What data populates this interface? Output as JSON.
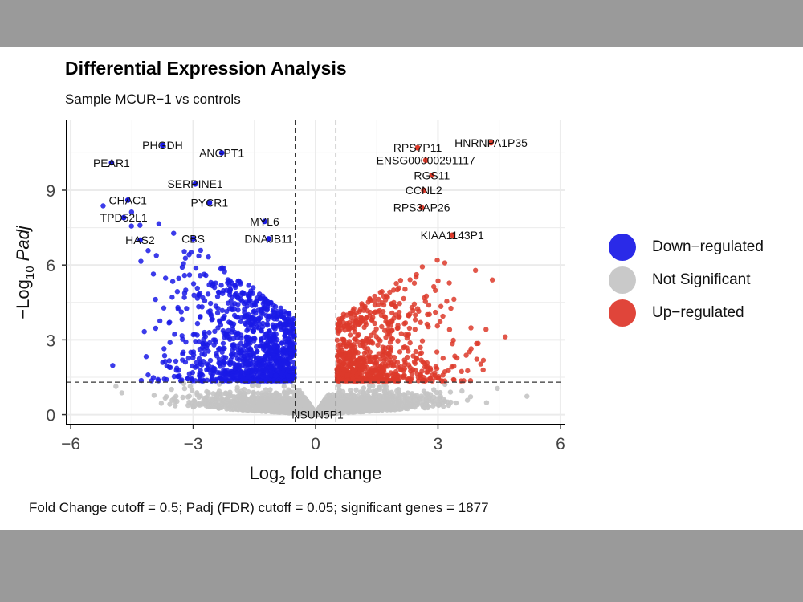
{
  "title": "Differential Expression Analysis",
  "subtitle": "Sample MCUR−1 vs controls",
  "caption": "Fold Change cutoff = 0.5; Padj (FDR) cutoff = 0.05; significant genes = 1877",
  "colors": {
    "down": "#1a1ae6",
    "ns": "#c4c4c4",
    "up": "#dd3a2a",
    "background": "#9a9a9a"
  },
  "legend": [
    {
      "label": "Down−regulated",
      "color": "#2a2ae8"
    },
    {
      "label": "Not Significant",
      "color": "#c9c9c9"
    },
    {
      "label": "Up−regulated",
      "color": "#e0453a"
    }
  ],
  "chart_data": {
    "type": "scatter",
    "title": "Differential Expression Analysis",
    "subtitle": "Sample MCUR−1 vs controls",
    "xlabel_main": "Log",
    "xlabel_sub": "2",
    "xlabel_rest": " fold change",
    "ylabel_prefix": "−Log",
    "ylabel_sub": "10",
    "ylabel_italic": " Padj",
    "xlim": [
      -6.1,
      6.1
    ],
    "ylim": [
      -0.4,
      11.8
    ],
    "xticks": [
      -6,
      -3,
      0,
      3,
      6
    ],
    "xtick_labels": [
      "−6",
      "−3",
      "0",
      "3",
      "6"
    ],
    "yticks": [
      0,
      3,
      6,
      9
    ],
    "ytick_labels": [
      "0",
      "3",
      "6",
      "9"
    ],
    "thresholds": {
      "log2fc": 0.5,
      "neglog10_padj": 1.301
    },
    "grid": true,
    "legend_position": "right",
    "labeled_genes": [
      {
        "gene": "PHGDH",
        "x": -3.75,
        "y": 10.8,
        "group": "down"
      },
      {
        "gene": "ANGPT1",
        "x": -2.3,
        "y": 10.5,
        "group": "down"
      },
      {
        "gene": "PEAR1",
        "x": -5.0,
        "y": 10.1,
        "group": "down"
      },
      {
        "gene": "SERPINE1",
        "x": -2.95,
        "y": 9.25,
        "group": "down"
      },
      {
        "gene": "CHAC1",
        "x": -4.6,
        "y": 8.6,
        "group": "down"
      },
      {
        "gene": "PYCR1",
        "x": -2.6,
        "y": 8.5,
        "group": "down"
      },
      {
        "gene": "TPD52L1",
        "x": -4.7,
        "y": 7.9,
        "group": "down"
      },
      {
        "gene": "MYL6",
        "x": -1.25,
        "y": 7.75,
        "group": "down"
      },
      {
        "gene": "HAS2",
        "x": -4.3,
        "y": 7.0,
        "group": "down"
      },
      {
        "gene": "CBS",
        "x": -3.0,
        "y": 7.05,
        "group": "down"
      },
      {
        "gene": "DNAJB11",
        "x": -1.15,
        "y": 7.05,
        "group": "down"
      },
      {
        "gene": "HNRNPA1P35",
        "x": 4.3,
        "y": 10.9,
        "group": "up"
      },
      {
        "gene": "RPS7P11",
        "x": 2.5,
        "y": 10.7,
        "group": "up"
      },
      {
        "gene": "ENSG00000291117",
        "x": 2.7,
        "y": 10.2,
        "group": "up"
      },
      {
        "gene": "RGS11",
        "x": 2.85,
        "y": 9.6,
        "group": "up"
      },
      {
        "gene": "CCNL2",
        "x": 2.65,
        "y": 9.0,
        "group": "up"
      },
      {
        "gene": "RPS3AP26",
        "x": 2.6,
        "y": 8.3,
        "group": "up"
      },
      {
        "gene": "KIAA1143P1",
        "x": 3.35,
        "y": 7.2,
        "group": "up"
      },
      {
        "gene": "NSUN5P1",
        "x": 0.05,
        "y": 0.0,
        "group": "ns"
      }
    ],
    "summary": {
      "significant_genes": 1877
    }
  }
}
